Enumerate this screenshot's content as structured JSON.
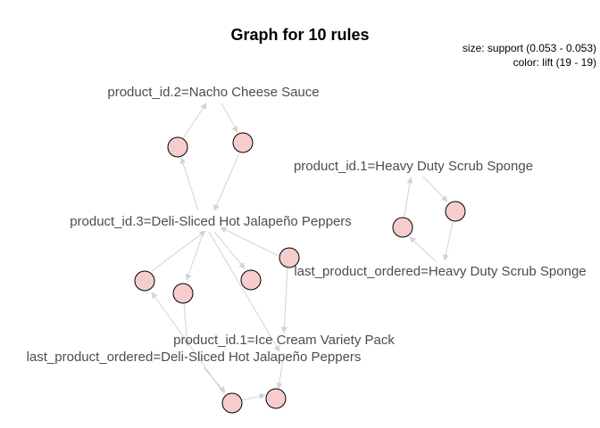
{
  "title": "Graph for 10 rules",
  "legend": {
    "size": "size: support (0.053 - 0.053)",
    "color": "color: lift (19 - 19)"
  },
  "items": {
    "nacho": "product_id.2=Nacho Cheese Sauce",
    "sponge1": "product_id.1=Heavy Duty Scrub Sponge",
    "jalapeno3": "product_id.3=Deli-Sliced Hot Jalapeño Peppers",
    "lastSponge": "last_product_ordered=Heavy Duty Scrub Sponge",
    "icecream": "product_id.1=Ice Cream Variety Pack",
    "lastJalapeno": "last_product_ordered=Deli-Sliced Hot Jalapeño Peppers"
  },
  "colors": {
    "node_fill": "#f6cccc",
    "edge": "#d3d3d3",
    "label": "#4d4d4d"
  }
}
